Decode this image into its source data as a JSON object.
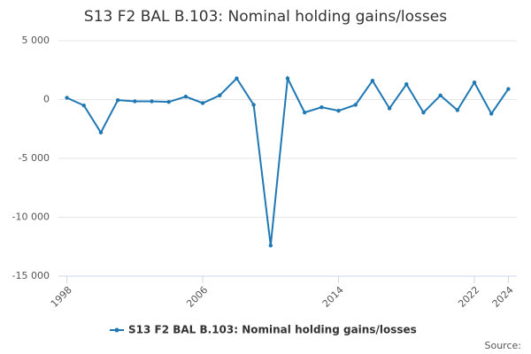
{
  "chart_data": {
    "type": "line",
    "title": "S13 F2 BAL B.103: Nominal holding gains/losses",
    "x": [
      1998,
      1999,
      2000,
      2001,
      2002,
      2003,
      2004,
      2005,
      2006,
      2007,
      2008,
      2009,
      2010,
      2011,
      2012,
      2013,
      2014,
      2015,
      2016,
      2017,
      2018,
      2019,
      2020,
      2021,
      2022,
      2023,
      2024
    ],
    "series": [
      {
        "name": "S13 F2 BAL B.103: Nominal holding gains/losses",
        "color": "#1f78b4",
        "values": [
          150,
          -500,
          -2800,
          -50,
          -150,
          -150,
          -200,
          250,
          -300,
          350,
          1800,
          -450,
          -12400,
          1800,
          -1100,
          -650,
          -950,
          -450,
          1600,
          -750,
          1300,
          -1100,
          350,
          -900,
          1450,
          -1200,
          900
        ]
      }
    ],
    "xlim": [
      1997.5,
      2024.5
    ],
    "xticks": [
      1998,
      2006,
      2014,
      2022,
      2024
    ],
    "ylim": [
      -15000,
      5000
    ],
    "yticks": [
      {
        "value": -15000,
        "label": "-15 000"
      },
      {
        "value": -10000,
        "label": "-10 000"
      },
      {
        "value": -5000,
        "label": "-5 000"
      },
      0,
      {
        "value": 5000,
        "label": "5 000"
      }
    ],
    "grid": true,
    "source": "Source:"
  }
}
